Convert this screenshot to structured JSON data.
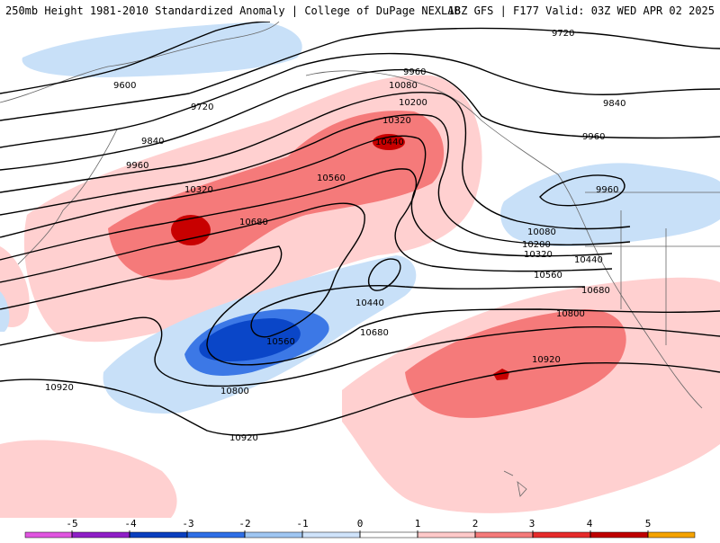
{
  "header": {
    "title_left": "250mb Height 1981-2010 Standardized Anomaly | College of DuPage NEXLAB",
    "title_right": "18Z GFS | F177 Valid: 03Z WED APR 02 2025"
  },
  "contour_labels": [
    "9600",
    "9720",
    "9840",
    "9960",
    "10320",
    "10680",
    "10560",
    "9960",
    "10080",
    "10200",
    "10320",
    "10440",
    "9720",
    "9840",
    "9960",
    "9960",
    "10080",
    "10200",
    "10320",
    "10440",
    "10560",
    "10680",
    "10800",
    "10920",
    "10440",
    "10560",
    "10680",
    "10800",
    "10920",
    "10920"
  ],
  "legend": {
    "labels": [
      "-5",
      "-4",
      "-3",
      "-2",
      "-1",
      "0",
      "1",
      "2",
      "3",
      "4",
      "5"
    ],
    "colors": [
      "#e055e0",
      "#8f1fc7",
      "#0a3fbf",
      "#2f6fe6",
      "#9fc6f2",
      "#cfe3fa",
      "#ffffff",
      "#ffc9c9",
      "#f57a7a",
      "#e62b2b",
      "#bf0000",
      "#f5a300"
    ]
  },
  "colors": {
    "anom_pos1": "#ffd0d0",
    "anom_pos2": "#f57a7a",
    "anom_pos3": "#c80000",
    "anom_neg1": "#c8e0f8",
    "anom_neg2": "#3c78e6",
    "anom_neg3": "#0a46c8"
  }
}
